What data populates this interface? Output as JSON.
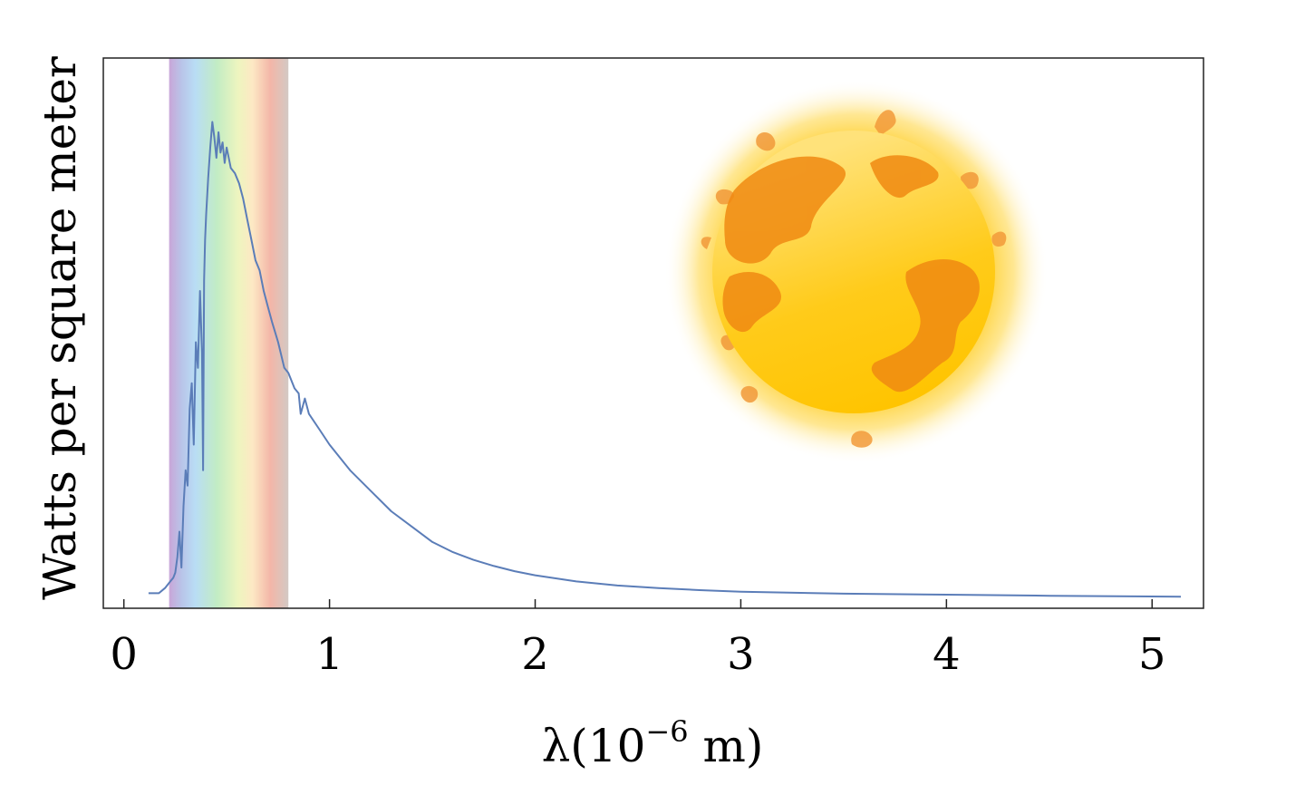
{
  "chart_data": {
    "type": "line",
    "title": "",
    "xlabel": {
      "prefix": "λ(10",
      "exponent": "−6",
      "suffix": " m)"
    },
    "ylabel": "Watts per square meter",
    "xlim": [
      -0.1,
      5.25
    ],
    "ylim": [
      0,
      100
    ],
    "x_ticks": [
      "0",
      "1",
      "2",
      "3",
      "4",
      "5"
    ],
    "x_tick_values": [
      0,
      1,
      2,
      3,
      4,
      5
    ],
    "visible_band": {
      "x_start": 0.22,
      "x_end": 0.8
    },
    "grid": false,
    "series": [
      {
        "color": "#5b7db8",
        "x": [
          0.12,
          0.17,
          0.2,
          0.22,
          0.24,
          0.25,
          0.26,
          0.27,
          0.28,
          0.29,
          0.3,
          0.31,
          0.32,
          0.33,
          0.34,
          0.35,
          0.36,
          0.37,
          0.38,
          0.385,
          0.39,
          0.395,
          0.4,
          0.41,
          0.42,
          0.43,
          0.44,
          0.45,
          0.46,
          0.47,
          0.48,
          0.49,
          0.5,
          0.52,
          0.54,
          0.56,
          0.58,
          0.6,
          0.62,
          0.64,
          0.66,
          0.68,
          0.7,
          0.72,
          0.75,
          0.78,
          0.8,
          0.83,
          0.85,
          0.86,
          0.88,
          0.9,
          0.95,
          1.0,
          1.1,
          1.2,
          1.3,
          1.4,
          1.5,
          1.6,
          1.7,
          1.8,
          1.9,
          2.0,
          2.2,
          2.4,
          2.6,
          2.8,
          3.0,
          3.5,
          4.0,
          4.5,
          5.14
        ],
        "y": [
          1,
          1,
          2,
          3,
          4,
          5,
          8,
          13,
          6,
          18,
          25,
          22,
          37,
          42,
          30,
          50,
          45,
          60,
          48,
          25,
          62,
          70,
          75,
          82,
          88,
          93,
          90,
          86,
          91,
          87,
          89,
          85,
          88,
          84,
          83,
          81,
          78,
          74,
          70,
          66,
          64,
          60,
          57,
          54,
          50,
          45,
          44,
          41,
          40,
          36,
          39,
          36,
          33,
          30,
          25,
          21,
          17,
          14,
          11,
          9,
          7.5,
          6.3,
          5.3,
          4.5,
          3.3,
          2.5,
          2.0,
          1.6,
          1.3,
          0.9,
          0.7,
          0.5,
          0.3
        ]
      }
    ]
  }
}
